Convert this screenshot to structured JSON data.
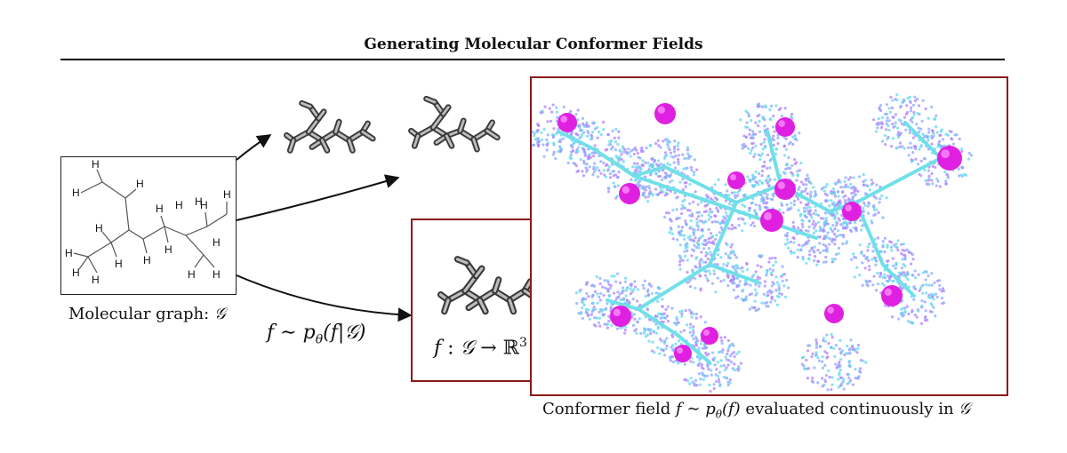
{
  "title": "Generating Molecular Conformer Fields",
  "graph": {
    "caption_text": "Molecular graph: ",
    "caption_symbol": "𝒢",
    "atom_label": "H"
  },
  "sampling": {
    "f": "f",
    "sim": "∼",
    "p": "p",
    "theta": "θ",
    "arg": "(f|𝒢)"
  },
  "mapping": {
    "f": "f",
    "colon": " : ",
    "domain": "𝒢",
    "arrow": " → ",
    "codomain": "ℝ",
    "exponent": "3"
  },
  "field": {
    "caption_pre": "Conformer field ",
    "f": "f",
    "sim": " ∼ ",
    "p": "p",
    "theta": "θ",
    "arg": "(f)",
    "caption_post": " evaluated continuously in ",
    "symbol": "𝒢"
  },
  "colors": {
    "frame": "#8b1a1a",
    "atom": "#e020e0",
    "bond": "#70e0e8",
    "cloud_a": "#8aa8ff",
    "cloud_b": "#60d8ee",
    "cloud_c": "#b080ff"
  }
}
